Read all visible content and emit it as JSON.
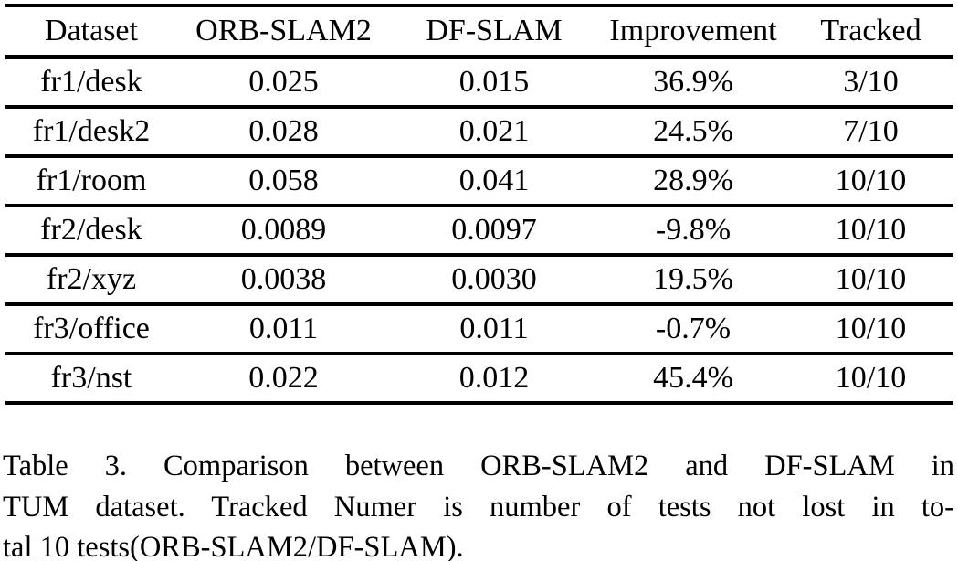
{
  "table": {
    "columns": [
      "Dataset",
      "ORB-SLAM2",
      "DF-SLAM",
      "Improvement",
      "Tracked"
    ],
    "rows": [
      [
        "fr1/desk",
        "0.025",
        "0.015",
        "36.9%",
        "3/10"
      ],
      [
        "fr1/desk2",
        "0.028",
        "0.021",
        "24.5%",
        "7/10"
      ],
      [
        "fr1/room",
        "0.058",
        "0.041",
        "28.9%",
        "10/10"
      ],
      [
        "fr2/desk",
        "0.0089",
        "0.0097",
        "-9.8%",
        "10/10"
      ],
      [
        "fr2/xyz",
        "0.0038",
        "0.0030",
        "19.5%",
        "10/10"
      ],
      [
        "fr3/office",
        "0.011",
        "0.011",
        "-0.7%",
        "10/10"
      ],
      [
        "fr3/nst",
        "0.022",
        "0.012",
        "45.4%",
        "10/10"
      ]
    ]
  },
  "caption": {
    "lines": [
      "Table 3. Comparison between ORB-SLAM2 and DF-SLAM in",
      "TUM dataset. Tracked Numer is number of tests not lost in to-",
      "tal 10 tests(ORB-SLAM2/DF-SLAM)."
    ]
  },
  "colors": {
    "text": "#000000",
    "background": "#ffffff",
    "rule": "#000000"
  },
  "chart_data": {
    "type": "table",
    "title": "Table 3. Comparison between ORB-SLAM2 and DF-SLAM in TUM dataset. Tracked Numer is number of tests not lost in total 10 tests(ORB-SLAM2/DF-SLAM).",
    "columns": [
      "Dataset",
      "ORB-SLAM2",
      "DF-SLAM",
      "Improvement",
      "Tracked"
    ],
    "rows": [
      {
        "dataset": "fr1/desk",
        "orb_slam2": 0.025,
        "df_slam": 0.015,
        "improvement_pct": 36.9,
        "tracked": "3/10"
      },
      {
        "dataset": "fr1/desk2",
        "orb_slam2": 0.028,
        "df_slam": 0.021,
        "improvement_pct": 24.5,
        "tracked": "7/10"
      },
      {
        "dataset": "fr1/room",
        "orb_slam2": 0.058,
        "df_slam": 0.041,
        "improvement_pct": 28.9,
        "tracked": "10/10"
      },
      {
        "dataset": "fr2/desk",
        "orb_slam2": 0.0089,
        "df_slam": 0.0097,
        "improvement_pct": -9.8,
        "tracked": "10/10"
      },
      {
        "dataset": "fr2/xyz",
        "orb_slam2": 0.0038,
        "df_slam": 0.003,
        "improvement_pct": 19.5,
        "tracked": "10/10"
      },
      {
        "dataset": "fr3/office",
        "orb_slam2": 0.011,
        "df_slam": 0.011,
        "improvement_pct": -0.7,
        "tracked": "10/10"
      },
      {
        "dataset": "fr3/nst",
        "orb_slam2": 0.022,
        "df_slam": 0.012,
        "improvement_pct": 45.4,
        "tracked": "10/10"
      }
    ]
  }
}
